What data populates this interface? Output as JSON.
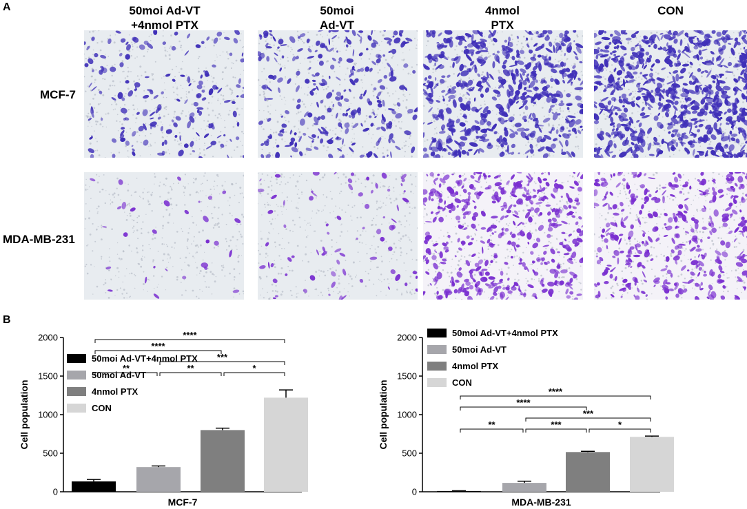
{
  "panel_a": {
    "letter": "A",
    "columns": [
      {
        "line1": "50moi Ad-VT",
        "line2": "+4nmol PTX"
      },
      {
        "line1": "50moi",
        "line2": "Ad-VT"
      },
      {
        "line1": "4nmol",
        "line2": "PTX"
      },
      {
        "line1": "",
        "line2": "CON"
      }
    ],
    "rows": [
      "MCF-7",
      "MDA-MB-231"
    ],
    "stain_colors": {
      "mcf7": "#3f2fb8",
      "mda": "#7a2fd0",
      "background": "#e8ecf0"
    }
  },
  "panel_b": {
    "letter": "B"
  },
  "chart_data": [
    {
      "type": "bar",
      "title": "",
      "xlabel": "MCF-7",
      "ylabel": "Cell population",
      "ylim": [
        0,
        2000
      ],
      "yticks": [
        0,
        500,
        1000,
        1500,
        2000
      ],
      "categories": [
        "50moi Ad-VT+4nmol PTX",
        "50moi Ad-VT",
        "4nmol PTX",
        "CON"
      ],
      "values": [
        135,
        320,
        800,
        1220
      ],
      "errors": [
        25,
        15,
        25,
        100
      ],
      "colors": [
        "#000000",
        "#a6a6ab",
        "#7f7f7f",
        "#d6d6d6"
      ],
      "legend": [
        "50moi Ad-VT+4nmol PTX",
        "50moi Ad-VT",
        "4nmol PTX",
        "CON"
      ],
      "legend_position": "middle-left",
      "significance": [
        {
          "from": 0,
          "to": 3,
          "label": "****"
        },
        {
          "from": 0,
          "to": 2,
          "label": "****"
        },
        {
          "from": 1,
          "to": 3,
          "label": "***"
        },
        {
          "from": 0,
          "to": 1,
          "label": "**"
        },
        {
          "from": 1,
          "to": 2,
          "label": "**"
        },
        {
          "from": 2,
          "to": 3,
          "label": "*"
        }
      ]
    },
    {
      "type": "bar",
      "title": "",
      "xlabel": "MDA-MB-231",
      "ylabel": "Cell population",
      "ylim": [
        0,
        2000
      ],
      "yticks": [
        0,
        500,
        1000,
        1500,
        2000
      ],
      "categories": [
        "50moi Ad-VT+4nmol PTX",
        "50moi Ad-VT",
        "4nmol PTX",
        "CON"
      ],
      "values": [
        10,
        115,
        515,
        712
      ],
      "errors": [
        3,
        22,
        10,
        10
      ],
      "colors": [
        "#000000",
        "#a6a6ab",
        "#7f7f7f",
        "#d6d6d6"
      ],
      "legend": [
        "50moi Ad-VT+4nmol PTX",
        "50moi Ad-VT",
        "4nmol PTX",
        "CON"
      ],
      "legend_position": "top-left",
      "significance": [
        {
          "from": 0,
          "to": 3,
          "label": "****"
        },
        {
          "from": 0,
          "to": 2,
          "label": "****"
        },
        {
          "from": 1,
          "to": 3,
          "label": "***"
        },
        {
          "from": 0,
          "to": 1,
          "label": "**"
        },
        {
          "from": 1,
          "to": 2,
          "label": "***"
        },
        {
          "from": 2,
          "to": 3,
          "label": "*"
        }
      ]
    }
  ]
}
